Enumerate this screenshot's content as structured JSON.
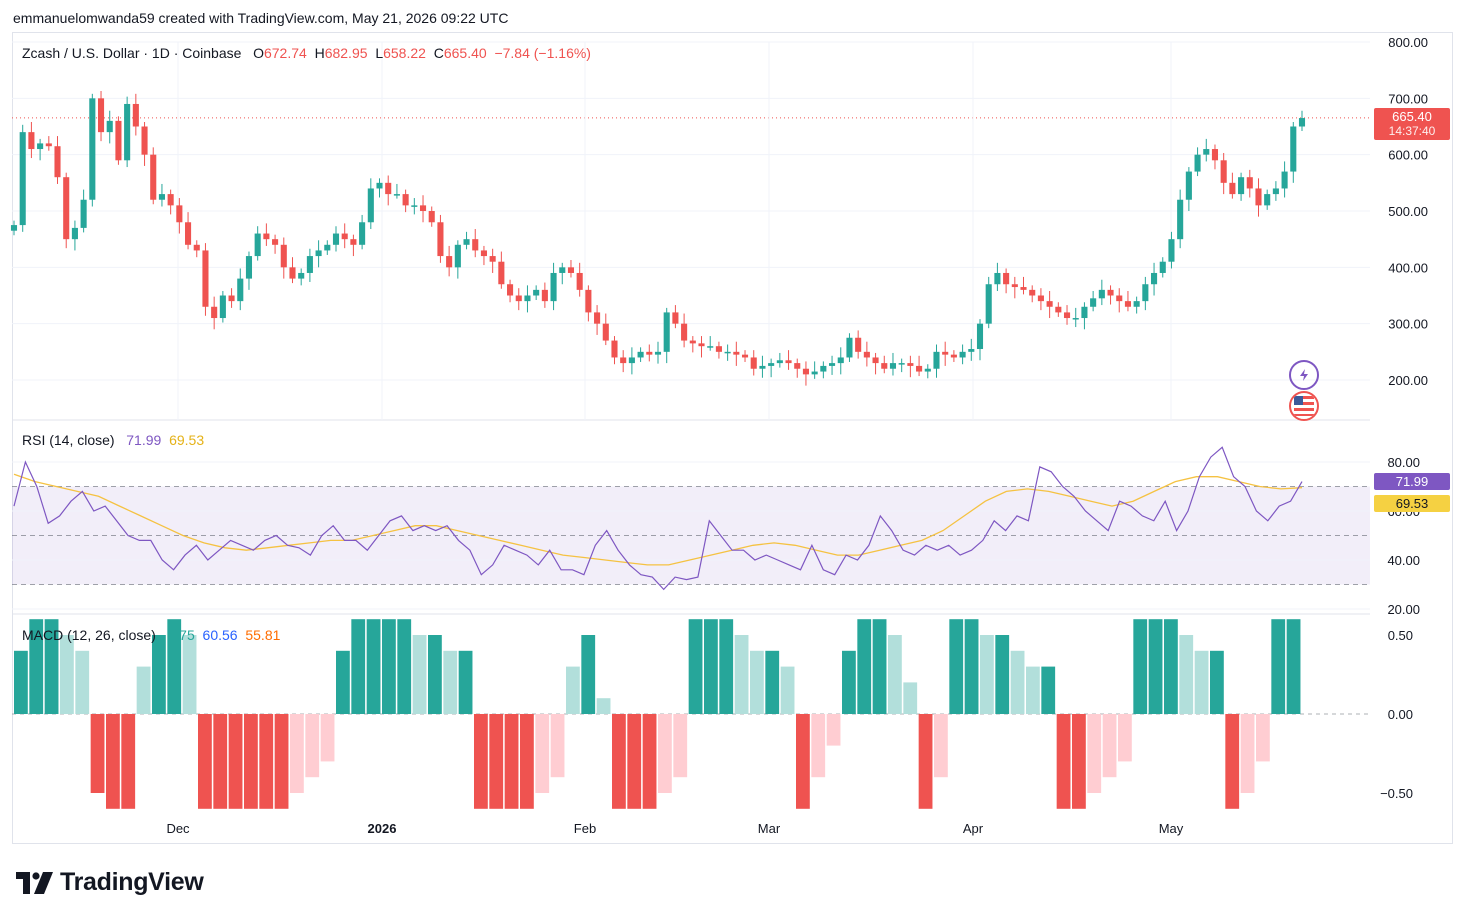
{
  "header": {
    "author_line": "emmanuelomwanda59 created with TradingView.com, May 21, 2026 09:22 UTC"
  },
  "price_legend": {
    "symbol": "Zcash / U.S. Dollar · 1D · Coinbase",
    "o_label": "O",
    "o": "672.74",
    "h_label": "H",
    "h": "682.95",
    "l_label": "L",
    "l": "658.22",
    "c_label": "C",
    "c": "665.40",
    "change": "−7.84 (−1.16%)"
  },
  "price_tag": {
    "value": "665.40",
    "countdown": "14:37:40"
  },
  "rsi_legend": {
    "label": "RSI (14, close)",
    "rsi": "71.99",
    "ma": "69.53"
  },
  "rsi_tags": {
    "rsi": "71.99",
    "ma": "69.53"
  },
  "macd_legend": {
    "label": "MACD (12, 26, close)",
    "hist": "4.75",
    "macd": "60.56",
    "signal": "55.81"
  },
  "brand": {
    "name": "TradingView"
  },
  "colors": {
    "up": "#26a69a",
    "down": "#ef5350",
    "rsi": "#7e57c2",
    "rsi_ma": "#f5c242",
    "macd": "#2962ff",
    "signal": "#ff6d00"
  },
  "icons": [
    "lightning-icon",
    "us-flag-icon",
    "tradingview-logo-icon"
  ],
  "chart_data": [
    {
      "type": "candlestick",
      "title": "Zcash / U.S. Dollar · 1D · Coinbase",
      "x_ticks": [
        "Dec",
        "2026",
        "Feb",
        "Mar",
        "Apr",
        "May"
      ],
      "y_ticks": [
        "800.00",
        "700.00",
        "600.00",
        "500.00",
        "400.00",
        "300.00",
        "200.00"
      ],
      "ylim": [
        130,
        810
      ],
      "grid": true,
      "last_price": 665.4,
      "closes": [
        475,
        640,
        610,
        620,
        615,
        560,
        450,
        470,
        520,
        700,
        640,
        660,
        590,
        690,
        650,
        600,
        520,
        530,
        510,
        480,
        440,
        430,
        330,
        310,
        350,
        340,
        380,
        420,
        460,
        450,
        440,
        400,
        380,
        390,
        420,
        430,
        440,
        460,
        450,
        440,
        480,
        540,
        550,
        530,
        530,
        510,
        510,
        500,
        480,
        420,
        400,
        440,
        450,
        430,
        420,
        410,
        370,
        350,
        340,
        350,
        360,
        340,
        390,
        400,
        390,
        360,
        320,
        300,
        270,
        240,
        230,
        240,
        250,
        245,
        250,
        320,
        300,
        270,
        265,
        260,
        260,
        250,
        250,
        245,
        240,
        220,
        225,
        230,
        235,
        230,
        220,
        210,
        215,
        225,
        230,
        240,
        275,
        250,
        240,
        230,
        220,
        230,
        230,
        225,
        215,
        220,
        250,
        245,
        240,
        250,
        255,
        300,
        370,
        390,
        370,
        365,
        360,
        350,
        340,
        330,
        320,
        310,
        310,
        330,
        345,
        360,
        350,
        340,
        330,
        340,
        370,
        390,
        410,
        450,
        520,
        570,
        600,
        610,
        590,
        550,
        530,
        560,
        540,
        510,
        530,
        540,
        570,
        650,
        665
      ]
    },
    {
      "type": "line",
      "name": "RSI (14, close)",
      "y_ticks": [
        "80.00",
        "60.00",
        "40.00",
        "20.00"
      ],
      "ylim": [
        18,
        92
      ],
      "bands": [
        30,
        50,
        70
      ],
      "rsi": [
        62,
        80,
        70,
        55,
        58,
        64,
        68,
        60,
        62,
        56,
        50,
        48,
        48,
        40,
        36,
        42,
        46,
        40,
        44,
        48,
        46,
        44,
        48,
        50,
        46,
        45,
        42,
        50,
        54,
        48,
        48,
        44,
        50,
        56,
        58,
        52,
        54,
        52,
        54,
        48,
        44,
        34,
        38,
        46,
        44,
        42,
        38,
        44,
        36,
        36,
        34,
        46,
        52,
        44,
        38,
        34,
        33,
        28,
        33,
        32,
        33,
        56,
        50,
        44,
        44,
        40,
        42,
        40,
        38,
        36,
        46,
        36,
        34,
        42,
        40,
        46,
        58,
        52,
        44,
        42,
        46,
        44,
        46,
        42,
        44,
        48,
        56,
        52,
        58,
        56,
        78,
        76,
        70,
        66,
        60,
        56,
        52,
        64,
        62,
        58,
        56,
        64,
        52,
        60,
        74,
        82,
        86,
        74,
        70,
        60,
        56,
        62,
        64,
        72
      ],
      "rsi_ma": [
        75,
        72,
        70,
        68,
        66,
        62,
        58,
        54,
        50,
        47,
        45,
        44,
        45,
        46,
        47,
        48,
        48,
        50,
        52,
        54,
        54,
        52,
        50,
        48,
        46,
        44,
        42,
        41,
        40,
        39,
        38,
        38,
        40,
        42,
        44,
        46,
        47,
        46,
        44,
        42,
        42,
        44,
        46,
        48,
        52,
        58,
        64,
        68,
        69,
        68,
        66,
        64,
        62,
        64,
        68,
        72,
        74,
        74,
        72,
        70,
        69,
        69.53
      ]
    },
    {
      "type": "bar",
      "name": "MACD (12, 26, close)",
      "y_ticks": [
        "0.50",
        "0.00",
        "−0.50"
      ],
      "ylim": [
        -0.6,
        0.6
      ],
      "histogram": [
        0.4,
        0.6,
        0.6,
        0.5,
        0.4,
        -0.5,
        -0.6,
        -0.6,
        0.3,
        0.5,
        0.6,
        0.5,
        -0.6,
        -0.6,
        -0.6,
        -0.6,
        -0.6,
        -0.6,
        -0.5,
        -0.4,
        -0.3,
        0.4,
        0.6,
        0.6,
        0.6,
        0.6,
        0.5,
        0.5,
        0.4,
        0.4,
        -0.6,
        -0.6,
        -0.6,
        -0.6,
        -0.5,
        -0.4,
        0.3,
        0.5,
        0.1,
        -0.6,
        -0.6,
        -0.6,
        -0.5,
        -0.4,
        0.6,
        0.6,
        0.6,
        0.5,
        0.4,
        0.4,
        0.3,
        -0.6,
        -0.4,
        -0.2,
        0.4,
        0.6,
        0.6,
        0.5,
        0.2,
        -0.6,
        -0.4,
        0.6,
        0.6,
        0.5,
        0.5,
        0.4,
        0.3,
        0.3,
        -0.6,
        -0.6,
        -0.5,
        -0.4,
        -0.3,
        0.6,
        0.6,
        0.6,
        0.5,
        0.4,
        0.4,
        -0.6,
        -0.5,
        -0.3,
        0.6,
        0.6
      ]
    }
  ]
}
